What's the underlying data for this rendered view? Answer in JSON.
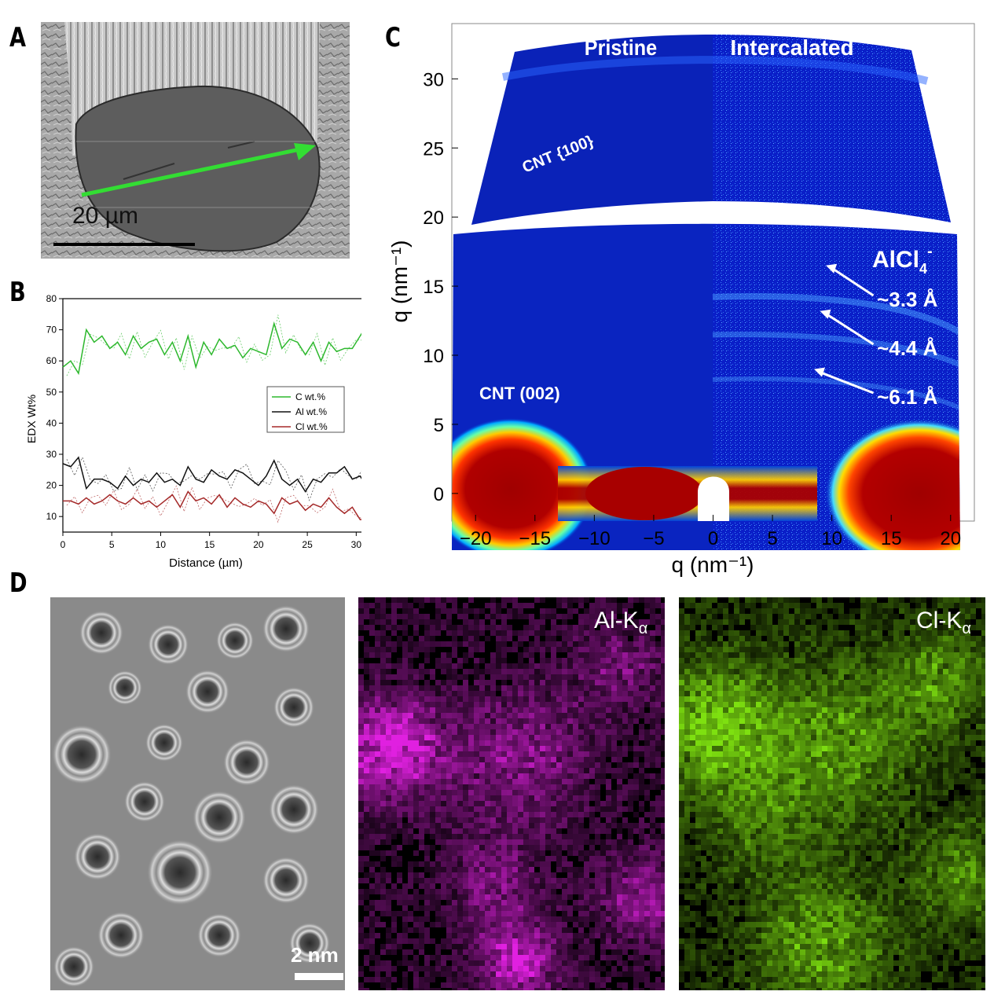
{
  "panels": {
    "a": "A",
    "b": "B",
    "c": "C",
    "d": "D"
  },
  "panel_a": {
    "scale_bar_label": "20 µm"
  },
  "chart_data": [
    {
      "type": "line",
      "panel": "B",
      "xlabel": "Distance (µm)",
      "ylabel": "EDX Wt%",
      "xlim": [
        0,
        31.5
      ],
      "ylim": [
        5,
        80
      ],
      "xticks": [
        0,
        5,
        10,
        15,
        20,
        25,
        30
      ],
      "yticks": [
        10,
        20,
        30,
        40,
        50,
        60,
        70,
        80
      ],
      "legend_position": "right",
      "x": [
        0,
        0.8,
        1.6,
        2.4,
        3.2,
        4.0,
        4.8,
        5.6,
        6.4,
        7.2,
        8.0,
        8.8,
        9.6,
        10.4,
        11.2,
        12.0,
        12.8,
        13.6,
        14.4,
        15.2,
        16.0,
        16.8,
        17.6,
        18.4,
        19.2,
        20.0,
        20.8,
        21.6,
        22.4,
        23.2,
        24.0,
        24.8,
        25.6,
        26.4,
        27.2,
        28.0,
        28.8,
        29.6,
        30.4,
        31.0
      ],
      "series": [
        {
          "name": "C wt.%",
          "color": "#2db82d",
          "values": [
            58,
            60,
            56,
            70,
            66,
            68,
            64,
            66,
            62,
            68,
            64,
            66,
            67,
            62,
            66,
            60,
            68,
            58,
            66,
            62,
            67,
            64,
            65,
            61,
            64,
            63,
            62,
            72,
            64,
            67,
            66,
            62,
            66,
            60,
            66,
            63,
            64,
            64,
            68,
            71
          ]
        },
        {
          "name": "Al wt.%",
          "color": "#111111",
          "values": [
            27,
            26,
            29,
            19,
            22,
            22,
            21,
            19,
            23,
            20,
            22,
            21,
            24,
            21,
            22,
            20,
            26,
            22,
            21,
            25,
            23,
            22,
            25,
            24,
            22,
            20,
            23,
            28,
            22,
            20,
            22,
            18,
            22,
            21,
            24,
            24,
            26,
            22,
            23,
            20
          ]
        },
        {
          "name": "Cl wt.%",
          "color": "#a52a2a",
          "values": [
            15,
            15,
            14,
            16,
            14,
            15,
            17,
            15,
            14,
            16,
            14,
            15,
            13,
            15,
            17,
            13,
            18,
            15,
            16,
            14,
            17,
            13,
            16,
            14,
            13,
            15,
            14,
            11,
            16,
            14,
            15,
            12,
            14,
            13,
            16,
            13,
            11,
            13,
            9,
            9
          ]
        }
      ]
    },
    {
      "type": "heatmap",
      "panel": "C",
      "xlabel": "q (nm⁻¹)",
      "ylabel": "q (nm⁻¹)",
      "xlim": [
        -22,
        22
      ],
      "ylim": [
        -2,
        34
      ],
      "xticks": [
        -20,
        -15,
        -10,
        -5,
        0,
        5,
        10,
        15,
        20
      ],
      "yticks": [
        0,
        5,
        10,
        15,
        20,
        25,
        30
      ],
      "labels": {
        "pristine": "Pristine",
        "intercalated": "Intercalated",
        "cnt100": "CNT {100}",
        "cnt002": "CNT (002)",
        "ion": "AlCl",
        "ion_sub": "4",
        "ion_sup": "-"
      },
      "annotations": [
        {
          "label": "~3.3 Å",
          "q": 16.5
        },
        {
          "label": "~4.4 Å",
          "q": 13.2
        },
        {
          "label": "~6.1 Å",
          "q": 9.0
        }
      ]
    }
  ],
  "panel_d": {
    "scale_bar_label": "2 nm",
    "map_al_label": "Al-K",
    "map_al_sub": "α",
    "map_cl_label": "Cl-K",
    "map_cl_sub": "α",
    "colors": {
      "al": "#e020e0",
      "cl": "#7ee010"
    }
  }
}
